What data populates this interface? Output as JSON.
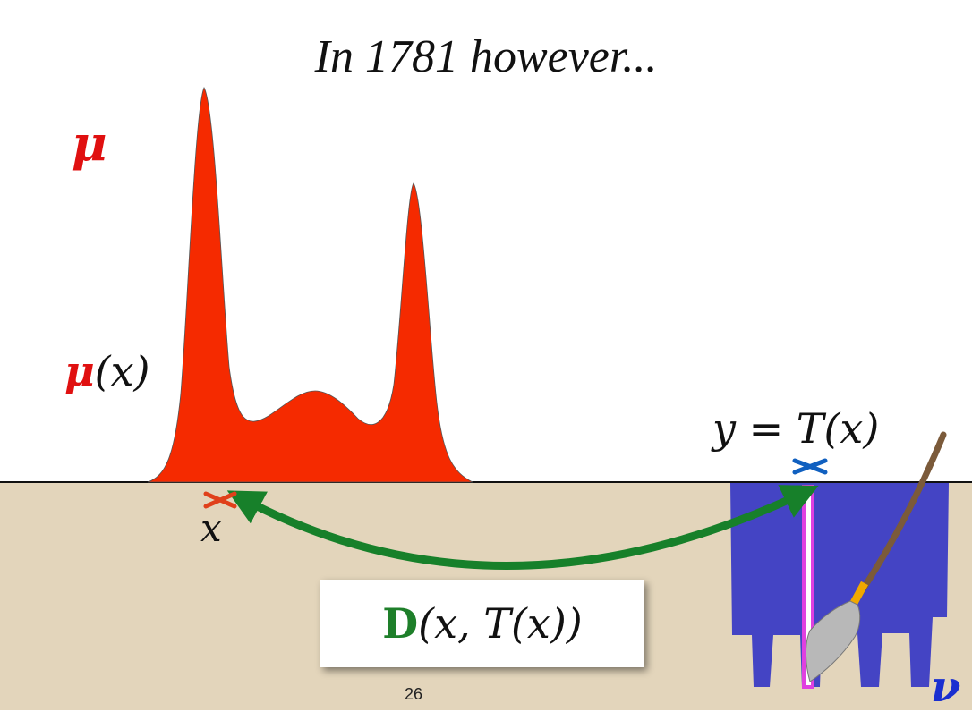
{
  "slide": {
    "title": "In 1781 however...",
    "page_number": "26"
  },
  "labels": {
    "mu_symbol": "μ",
    "mu_of_x_symbol": "μ",
    "mu_of_x_arg": "(x)",
    "x_label": "x",
    "y_eq_T_of_x": "y = T(x)",
    "nu_symbol": "ν"
  },
  "formula": {
    "D_symbol": "D",
    "args": "(x, T(x))"
  },
  "colors": {
    "mu_red": "#f52a00",
    "ground": "#e3d5bb",
    "hole_blue": "#4444c4",
    "arrow_green": "#17802a",
    "x_marker_red": "#e0401a",
    "y_marker_blue": "#1060c0",
    "column_magenta": "#e040e0"
  }
}
